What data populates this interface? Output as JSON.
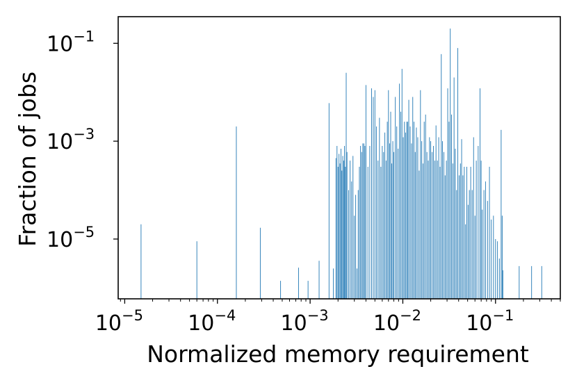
{
  "chart_data": {
    "type": "bar",
    "xlabel": "Normalized memory requirement",
    "ylabel": "Fraction of jobs",
    "xscale": "log",
    "yscale": "log",
    "xlim": [
      8.5e-06,
      0.5
    ],
    "ylim": [
      6e-07,
      0.35
    ],
    "x_ticks": [
      {
        "value": 1e-05,
        "base": "10",
        "exp": "−5"
      },
      {
        "value": 0.0001,
        "base": "10",
        "exp": "−4"
      },
      {
        "value": 0.001,
        "base": "10",
        "exp": "−3"
      },
      {
        "value": 0.01,
        "base": "10",
        "exp": "−2"
      },
      {
        "value": 0.1,
        "base": "10",
        "exp": "−1"
      }
    ],
    "y_ticks": [
      {
        "value": 0.1,
        "base": "10",
        "exp": "−1"
      },
      {
        "value": 0.001,
        "base": "10",
        "exp": "−3"
      },
      {
        "value": 1e-05,
        "base": "10",
        "exp": "−5"
      }
    ],
    "bar_color": "#1f77b4",
    "series": [
      {
        "x": [
          1.5e-05,
          6e-05,
          0.00016,
          0.00029,
          0.00048,
          0.00075,
          0.00095,
          0.00125,
          0.0016,
          0.00178,
          0.0019,
          0.00195,
          0.002,
          0.00205,
          0.0021,
          0.00215,
          0.0022,
          0.00225,
          0.0023,
          0.00235,
          0.0024,
          0.00245,
          0.0025,
          0.0026,
          0.0027,
          0.0028,
          0.0029,
          0.003,
          0.0031,
          0.0032,
          0.0033,
          0.0034,
          0.0035,
          0.0036,
          0.0037,
          0.0038,
          0.0039,
          0.004,
          0.0042,
          0.0044,
          0.0046,
          0.0048,
          0.005,
          0.0052,
          0.0054,
          0.0056,
          0.0058,
          0.006,
          0.0062,
          0.0064,
          0.0066,
          0.0068,
          0.007,
          0.0072,
          0.0074,
          0.0076,
          0.0078,
          0.008,
          0.0083,
          0.0086,
          0.0089,
          0.0092,
          0.0095,
          0.0098,
          0.0101,
          0.0104,
          0.0107,
          0.011,
          0.0113,
          0.0116,
          0.012,
          0.0124,
          0.0128,
          0.0132,
          0.0136,
          0.014,
          0.0145,
          0.015,
          0.0155,
          0.016,
          0.0165,
          0.017,
          0.0176,
          0.0182,
          0.0188,
          0.0194,
          0.02,
          0.0207,
          0.0214,
          0.0221,
          0.0228,
          0.0236,
          0.0244,
          0.0252,
          0.026,
          0.0268,
          0.0277,
          0.0286,
          0.0295,
          0.0305,
          0.0315,
          0.0325,
          0.0335,
          0.0346,
          0.0357,
          0.0368,
          0.038,
          0.0392,
          0.0405,
          0.0418,
          0.0431,
          0.0445,
          0.046,
          0.0475,
          0.049,
          0.0506,
          0.0522,
          0.054,
          0.056,
          0.058,
          0.06,
          0.062,
          0.065,
          0.068,
          0.07,
          0.072,
          0.075,
          0.078,
          0.082,
          0.086,
          0.09,
          0.095,
          0.1,
          0.105,
          0.11,
          0.115,
          0.118,
          0.12,
          0.18,
          0.245,
          0.315
        ],
        "y": [
          2e-05,
          9e-06,
          0.002,
          1.7e-05,
          1.4e-06,
          2.6e-06,
          1.4e-06,
          3.6e-06,
          0.006,
          2.5e-06,
          0.00045,
          0.0008,
          0.0003,
          0.00055,
          0.00035,
          0.0007,
          0.00025,
          0.0005,
          0.0004,
          0.0008,
          0.0003,
          0.025,
          0.0006,
          0.0001,
          0.0004,
          0.00015,
          0.0005,
          3e-05,
          8e-05,
          2.5e-06,
          0.0001,
          0.0003,
          0.0008,
          0.0006,
          0.0009,
          0.0009,
          0.0008,
          0.014,
          0.0003,
          0.0008,
          0.012,
          0.008,
          0.011,
          0.002,
          0.0004,
          0.003,
          0.0003,
          0.0008,
          0.0006,
          0.0015,
          0.0004,
          0.0025,
          0.011,
          0.0009,
          0.004,
          0.00035,
          0.001,
          0.0006,
          0.008,
          0.002,
          0.0007,
          0.015,
          0.004,
          0.03,
          0.0012,
          0.0025,
          0.0015,
          0.0025,
          0.0025,
          0.007,
          0.002,
          0.0009,
          0.008,
          0.0025,
          0.0006,
          0.0019,
          0.0012,
          0.00025,
          0.011,
          0.001,
          0.00035,
          0.0025,
          0.0035,
          0.0006,
          0.0004,
          0.0012,
          0.001,
          0.0006,
          0.0008,
          0.0004,
          0.0021,
          0.0004,
          0.0012,
          0.0003,
          0.06,
          0.001,
          0.0006,
          0.0002,
          0.0004,
          0.012,
          0.0025,
          0.2,
          0.0035,
          0.00035,
          0.02,
          0.0007,
          0.0001,
          0.08,
          0.0002,
          0.00035,
          0.0011,
          0.0002,
          0.0003,
          2e-05,
          0.0003,
          5e-05,
          0.0001,
          0.0003,
          0.0001,
          0.0012,
          3e-05,
          0.0004,
          0.0008,
          0.012,
          0.0004,
          4e-05,
          0.0001,
          0.00015,
          6e-05,
          0.0003,
          2.5e-05,
          3e-05,
          1e-05,
          9e-06,
          4e-06,
          0.0017,
          3e-05,
          2.3e-06,
          2.8e-06,
          2.8e-06,
          2.8e-06
        ]
      }
    ]
  }
}
